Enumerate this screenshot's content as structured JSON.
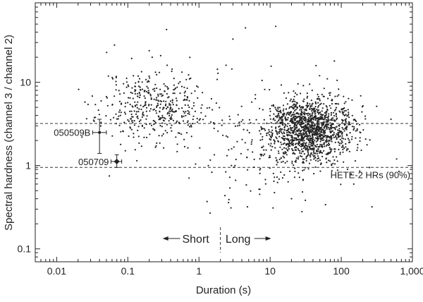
{
  "chart_data": {
    "type": "scatter",
    "title": "",
    "xlabel": "Duration (s)",
    "ylabel": "Spectral hardness (channel 3 / channel 2)",
    "x_scale": "log",
    "y_scale": "log",
    "xlim": [
      0.005,
      1000
    ],
    "ylim": [
      0.07,
      90
    ],
    "x_ticks": [
      {
        "value": 0.01,
        "label": "0.01"
      },
      {
        "value": 0.1,
        "label": "0.1"
      },
      {
        "value": 1,
        "label": "1"
      },
      {
        "value": 10,
        "label": "10"
      },
      {
        "value": 100,
        "label": "100"
      },
      {
        "value": 1000,
        "label": "1,000"
      }
    ],
    "y_ticks": [
      {
        "value": 0.1,
        "label": "0.1"
      },
      {
        "value": 1,
        "label": "1"
      },
      {
        "value": 10,
        "label": "10"
      }
    ],
    "grid": false,
    "hlines": [
      3.2,
      0.95
    ],
    "hline_label": "HETE-2 HRs (90%)",
    "divider_x": 2,
    "divider_labels": {
      "left": "Short",
      "right": "Long"
    },
    "highlighted": [
      {
        "label": "050509B",
        "x": 0.04,
        "y": 2.5,
        "x_err": [
          0.032,
          0.05
        ],
        "y_err": [
          1.4,
          3.6
        ]
      },
      {
        "label": "050709",
        "x": 0.07,
        "y": 1.12,
        "x_err": [
          0.058,
          0.082
        ],
        "y_err": [
          0.95,
          1.35
        ]
      }
    ],
    "series": [
      {
        "marker": "dot",
        "color": "#222222",
        "description_counts": "approx 2000 points",
        "clusters": [
          {
            "count": 430,
            "log_x_mean": -0.62,
            "log_x_sd": 0.38,
            "log_y_mean": 0.72,
            "log_y_sd": 0.22,
            "seed": 11
          },
          {
            "count": 1400,
            "log_x_mean": 1.55,
            "log_x_sd": 0.3,
            "log_y_mean": 0.43,
            "log_y_sd": 0.19,
            "seed": 29
          },
          {
            "count": 170,
            "log_x_mean": 0.95,
            "log_x_sd": 0.6,
            "log_y_mean": 0.22,
            "log_y_sd": 0.32,
            "seed": 47
          }
        ],
        "outliers": [
          [
            0.065,
            28
          ],
          [
            0.35,
            43
          ],
          [
            3.0,
            33
          ],
          [
            4.5,
            45
          ],
          [
            12,
            47
          ],
          [
            0.2,
            24
          ],
          [
            0.22,
            20
          ],
          [
            2.4,
            16
          ],
          [
            80,
            18
          ],
          [
            1.3,
            0.37
          ],
          [
            2.6,
            0.36
          ],
          [
            4.8,
            0.32
          ],
          [
            11,
            0.31
          ],
          [
            28,
            0.28
          ],
          [
            7,
            0.52
          ],
          [
            0.042,
            3.3
          ],
          [
            0.055,
            0.75
          ],
          [
            0.035,
            5.4
          ],
          [
            0.025,
            5.8
          ],
          [
            500,
            3.6
          ],
          [
            600,
            1.2
          ],
          [
            270,
            0.32
          ],
          [
            150,
            0.6
          ],
          [
            20,
            0.4
          ],
          [
            60,
            0.34
          ]
        ]
      }
    ]
  },
  "colors": {
    "points": "#222222",
    "axis": "#222222",
    "dashed": "#333333"
  }
}
